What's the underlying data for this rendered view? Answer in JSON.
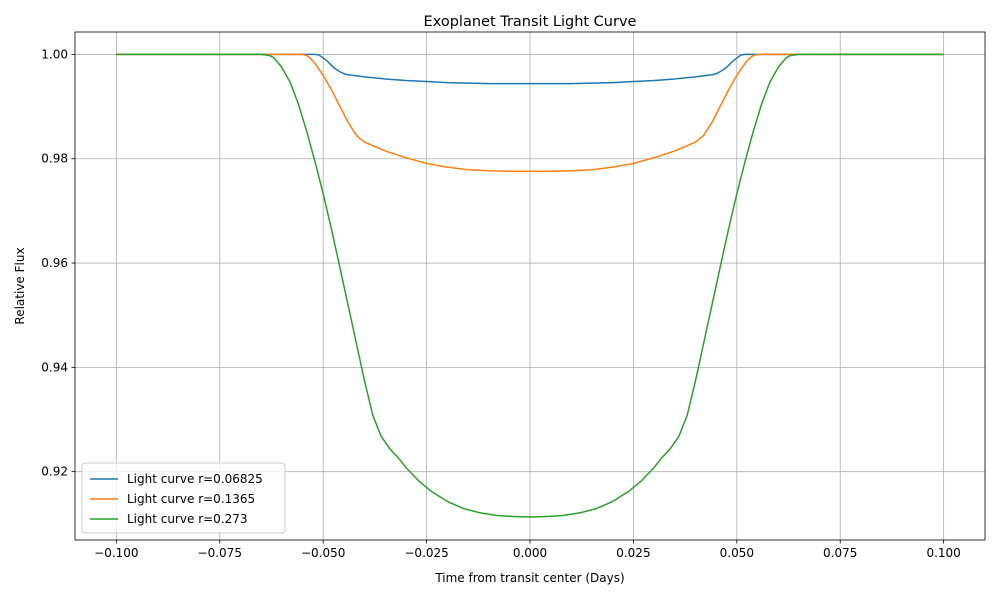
{
  "chart_data": {
    "type": "line",
    "title": "Exoplanet Transit Light Curve",
    "xlabel": "Time from transit center (Days)",
    "ylabel": "Relative Flux",
    "xlim": [
      -0.11,
      0.11
    ],
    "ylim": [
      0.9069,
      1.0043
    ],
    "xticks": [
      -0.1,
      -0.075,
      -0.05,
      -0.025,
      0.0,
      0.025,
      0.05,
      0.075,
      0.1
    ],
    "xtick_labels": [
      "−0.100",
      "−0.075",
      "−0.050",
      "−0.025",
      "0.000",
      "0.025",
      "0.050",
      "0.075",
      "0.100"
    ],
    "yticks": [
      0.92,
      0.94,
      0.96,
      0.98,
      1.0
    ],
    "ytick_labels": [
      "0.92",
      "0.94",
      "0.96",
      "0.98",
      "1.00"
    ],
    "grid": true,
    "legend_position": "lower-left",
    "series": [
      {
        "name": "Light curve r=0.06825",
        "color": "#1f77b4",
        "x": [
          -0.1,
          -0.09,
          -0.08,
          -0.07,
          -0.06,
          -0.055,
          -0.052,
          -0.051,
          -0.05,
          -0.049,
          -0.048,
          -0.047,
          -0.046,
          -0.045,
          -0.044,
          -0.043,
          -0.04,
          -0.035,
          -0.03,
          -0.025,
          -0.02,
          -0.015,
          -0.01,
          -0.005,
          0.0,
          0.005,
          0.01,
          0.015,
          0.02,
          0.025,
          0.03,
          0.035,
          0.04,
          0.043,
          0.044,
          0.045,
          0.046,
          0.047,
          0.048,
          0.049,
          0.05,
          0.051,
          0.052,
          0.055,
          0.06,
          0.07,
          0.08,
          0.09,
          0.1
        ],
        "y": [
          1.0,
          1.0,
          1.0,
          1.0,
          1.0,
          1.0,
          1.0,
          0.9999,
          0.9993,
          0.9987,
          0.9979,
          0.9972,
          0.9967,
          0.9963,
          0.9961,
          0.996,
          0.9957,
          0.9953,
          0.995,
          0.9948,
          0.9946,
          0.9945,
          0.9944,
          0.9944,
          0.9944,
          0.9944,
          0.9944,
          0.9945,
          0.9946,
          0.9948,
          0.995,
          0.9953,
          0.9957,
          0.996,
          0.9961,
          0.9963,
          0.9967,
          0.9972,
          0.9979,
          0.9987,
          0.9993,
          0.9999,
          1.0,
          1.0,
          1.0,
          1.0,
          1.0,
          1.0,
          1.0
        ]
      },
      {
        "name": "Light curve r=0.1365",
        "color": "#ff7f0e",
        "x": [
          -0.1,
          -0.09,
          -0.08,
          -0.07,
          -0.06,
          -0.056,
          -0.055,
          -0.054,
          -0.053,
          -0.052,
          -0.05,
          -0.048,
          -0.046,
          -0.044,
          -0.042,
          -0.041,
          -0.04,
          -0.038,
          -0.035,
          -0.03,
          -0.025,
          -0.02,
          -0.015,
          -0.01,
          -0.005,
          0.0,
          0.005,
          0.01,
          0.015,
          0.02,
          0.025,
          0.03,
          0.035,
          0.038,
          0.04,
          0.041,
          0.042,
          0.044,
          0.046,
          0.048,
          0.05,
          0.052,
          0.053,
          0.054,
          0.055,
          0.056,
          0.06,
          0.07,
          0.08,
          0.09,
          0.1
        ],
        "y": [
          1.0,
          1.0,
          1.0,
          1.0,
          1.0,
          1.0,
          1.0,
          0.9998,
          0.9992,
          0.9983,
          0.996,
          0.9932,
          0.9901,
          0.987,
          0.9845,
          0.9838,
          0.9832,
          0.9825,
          0.9815,
          0.9802,
          0.9791,
          0.9784,
          0.9779,
          0.9777,
          0.9776,
          0.9776,
          0.9776,
          0.9777,
          0.9779,
          0.9784,
          0.9791,
          0.9802,
          0.9815,
          0.9825,
          0.9832,
          0.9838,
          0.9845,
          0.987,
          0.9901,
          0.9932,
          0.996,
          0.9983,
          0.9992,
          0.9998,
          1.0,
          1.0,
          1.0,
          1.0,
          1.0,
          1.0,
          1.0
        ]
      },
      {
        "name": "Light curve r=0.273",
        "color": "#2ca02c",
        "x": [
          -0.1,
          -0.09,
          -0.08,
          -0.07,
          -0.065,
          -0.063,
          -0.062,
          -0.061,
          -0.06,
          -0.058,
          -0.056,
          -0.054,
          -0.052,
          -0.05,
          -0.048,
          -0.046,
          -0.044,
          -0.042,
          -0.04,
          -0.038,
          -0.036,
          -0.034,
          -0.033,
          -0.032,
          -0.03,
          -0.027,
          -0.024,
          -0.02,
          -0.016,
          -0.012,
          -0.008,
          -0.004,
          0.0,
          0.004,
          0.008,
          0.012,
          0.016,
          0.02,
          0.024,
          0.027,
          0.03,
          0.032,
          0.033,
          0.034,
          0.036,
          0.038,
          0.04,
          0.042,
          0.044,
          0.046,
          0.048,
          0.05,
          0.052,
          0.054,
          0.056,
          0.058,
          0.06,
          0.061,
          0.062,
          0.063,
          0.065,
          0.07,
          0.08,
          0.09,
          0.1
        ],
        "y": [
          1.0,
          1.0,
          1.0,
          1.0,
          1.0,
          0.9998,
          0.9994,
          0.9985,
          0.9975,
          0.9947,
          0.9905,
          0.9853,
          0.9795,
          0.9733,
          0.9665,
          0.9593,
          0.952,
          0.9447,
          0.9374,
          0.9308,
          0.9268,
          0.9245,
          0.9236,
          0.9228,
          0.9208,
          0.9183,
          0.9163,
          0.9143,
          0.9129,
          0.9121,
          0.9116,
          0.9114,
          0.9113,
          0.9114,
          0.9116,
          0.9121,
          0.9129,
          0.9143,
          0.9163,
          0.9183,
          0.9208,
          0.9228,
          0.9236,
          0.9245,
          0.9268,
          0.9308,
          0.9374,
          0.9447,
          0.952,
          0.9593,
          0.9665,
          0.9733,
          0.9795,
          0.9853,
          0.9905,
          0.9947,
          0.9975,
          0.9985,
          0.9994,
          0.9998,
          1.0,
          1.0,
          1.0,
          1.0,
          1.0
        ]
      }
    ]
  }
}
